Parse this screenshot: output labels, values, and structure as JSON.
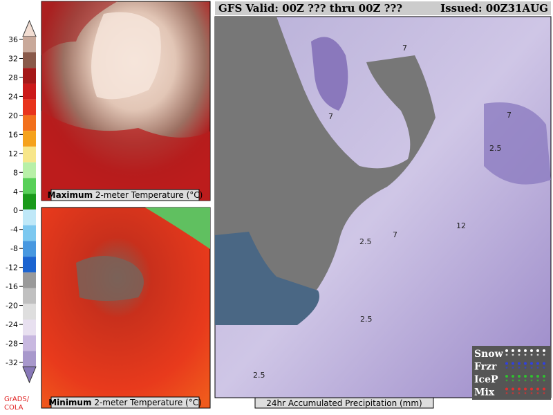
{
  "header": {
    "valid": "GFS Valid: 00Z ??? thru 00Z ???",
    "issued": "Issued: 00Z31AUG"
  },
  "colorbar": {
    "ticks": [
      36,
      32,
      28,
      24,
      20,
      16,
      12,
      8,
      4,
      0,
      -4,
      -8,
      -12,
      -16,
      -20,
      -24,
      -28,
      -32
    ],
    "colors": [
      "#f2ddd2",
      "#c9a99a",
      "#8a5a4a",
      "#a51818",
      "#cc1a1a",
      "#e8341c",
      "#f2701c",
      "#f5a21c",
      "#f7e68a",
      "#b8f0a8",
      "#58d058",
      "#1a9a1a",
      "#bfe8f8",
      "#7cc8f0",
      "#4898e0",
      "#1c64d0",
      "#9a9a9a",
      "#c0c0c0",
      "#dedede",
      "#e8e0f0",
      "#c8b8e0",
      "#a898cc",
      "#8878b8"
    ],
    "credit": [
      "GrADS/",
      "COLA"
    ]
  },
  "panels": {
    "max_temp": {
      "bold": "Maximum",
      "label": "2-meter Temperature (°C)"
    },
    "min_temp": {
      "bold": "Minimum",
      "label": "2-meter Temperature (°C)"
    },
    "precip": {
      "label": "24hr Accumulated Precipitation (mm)",
      "contour_labels": [
        "7",
        "7",
        "2.5",
        "7",
        "12",
        "7",
        "2.5",
        "2.5",
        "2.5"
      ]
    }
  },
  "legend": [
    {
      "name": "Snow",
      "color": "#ffffff"
    },
    {
      "name": "Frzr",
      "color": "#3040e0"
    },
    {
      "name": "IceP",
      "color": "#30c030"
    },
    {
      "name": "Mix",
      "color": "#e03030"
    }
  ]
}
